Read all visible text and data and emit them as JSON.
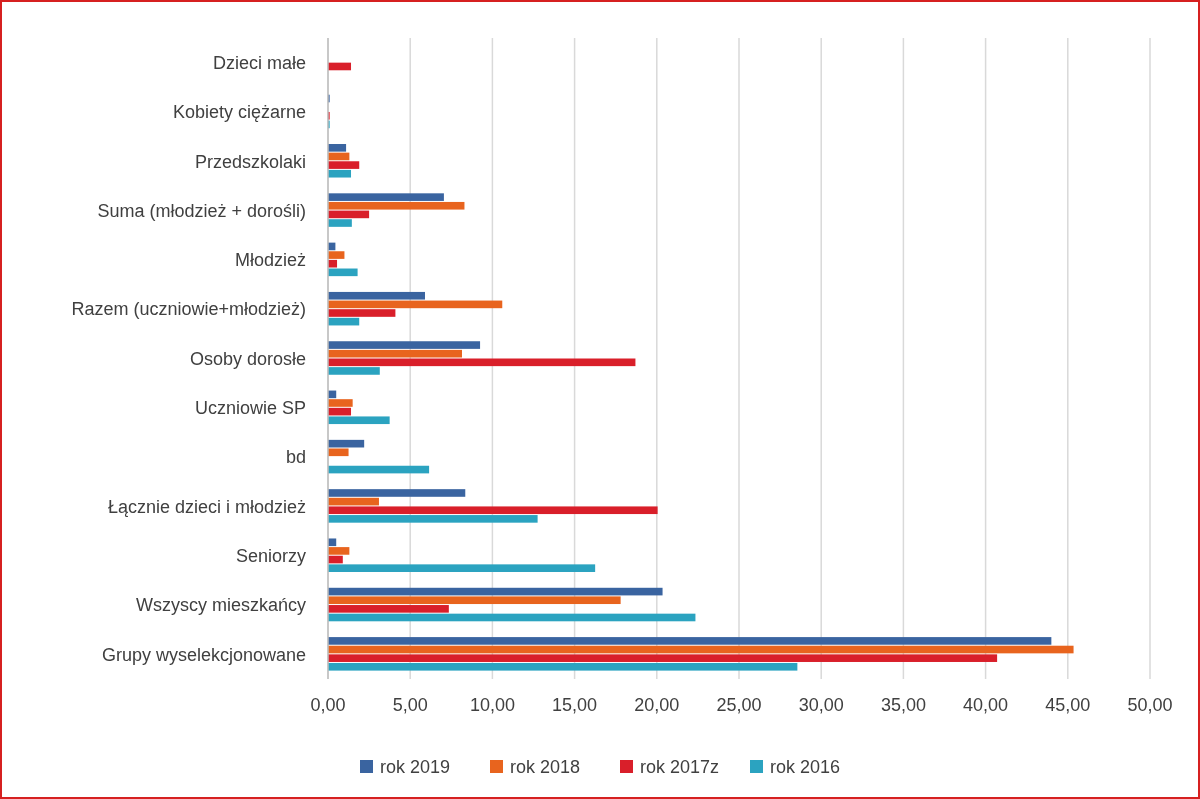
{
  "chart_data": {
    "type": "bar",
    "orientation": "horizontal",
    "categories": [
      "Dzieci małe",
      "Kobiety ciężarne",
      "Przedszkolaki",
      "Suma (młodzież + dorośli)",
      "Młodzież",
      "Razem (uczniowie+młodzież)",
      "Osoby dorosłe",
      "Uczniowie SP",
      "bd",
      "Łącznie dzieci i młodzież",
      "Seniorzy",
      "Wszyscy mieszkańcy",
      "Grupy wyselekcjonowane"
    ],
    "series": [
      {
        "name": "rok 2019",
        "color": "#3a64a0",
        "values": [
          null,
          0.1,
          1.1,
          7.05,
          0.45,
          5.9,
          9.25,
          0.5,
          2.2,
          8.35,
          0.5,
          20.35,
          44.0
        ]
      },
      {
        "name": "rok 2018",
        "color": "#e8641e",
        "values": [
          null,
          null,
          1.3,
          8.3,
          1.0,
          10.6,
          8.15,
          1.5,
          1.25,
          3.1,
          1.3,
          17.8,
          45.35
        ]
      },
      {
        "name": "rok 2017z",
        "color": "#d91f2a",
        "values": [
          1.4,
          0.1,
          1.9,
          2.5,
          0.55,
          4.1,
          18.7,
          1.4,
          null,
          20.05,
          0.9,
          7.35,
          40.7
        ]
      },
      {
        "name": "rok 2016",
        "color": "#2ba3c0",
        "values": [
          null,
          0.1,
          1.4,
          1.45,
          1.8,
          1.9,
          3.15,
          3.75,
          6.15,
          12.75,
          16.25,
          22.35,
          28.55
        ]
      }
    ],
    "xlim": [
      0,
      50
    ],
    "xticks": [
      {
        "value": 0,
        "label": "0,00"
      },
      {
        "value": 5,
        "label": "5,00"
      },
      {
        "value": 10,
        "label": "10,00"
      },
      {
        "value": 15,
        "label": "15,00"
      },
      {
        "value": 20,
        "label": "20,00"
      },
      {
        "value": 25,
        "label": "25,00"
      },
      {
        "value": 30,
        "label": "30,00"
      },
      {
        "value": 35,
        "label": "35,00"
      },
      {
        "value": 40,
        "label": "40,00"
      },
      {
        "value": 45,
        "label": "45,00"
      },
      {
        "value": 50,
        "label": "50,00"
      }
    ],
    "grid": "x",
    "legend": "bottom"
  }
}
